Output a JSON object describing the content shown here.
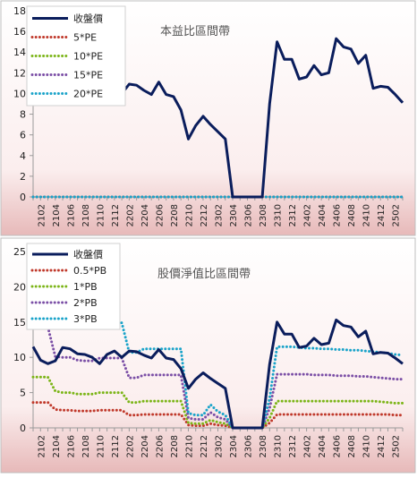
{
  "chart_data": [
    {
      "type": "line",
      "title": "本益比區間帶",
      "ylim": [
        0,
        18
      ],
      "yticks": [
        0,
        2,
        4,
        6,
        8,
        10,
        12,
        14,
        16,
        18
      ],
      "categories": [
        "2101",
        "2102",
        "2103",
        "2104",
        "2105",
        "2106",
        "2107",
        "2108",
        "2109",
        "2110",
        "2111",
        "2112",
        "2201",
        "2202",
        "2203",
        "2204",
        "2205",
        "2206",
        "2207",
        "2208",
        "2209",
        "2210",
        "2211",
        "2212",
        "2301",
        "2302",
        "2303",
        "2304",
        "2305",
        "2306",
        "2307",
        "2308",
        "2309",
        "2310",
        "2311",
        "2312",
        "2401",
        "2402",
        "2403",
        "2404",
        "2405",
        "2406",
        "2407",
        "2408",
        "2409",
        "2410",
        "2411",
        "2412",
        "2501",
        "2502",
        "2503"
      ],
      "xticklabels": [
        "2102",
        "2104",
        "2106",
        "2108",
        "2110",
        "2112",
        "2202",
        "2204",
        "2206",
        "2208",
        "2210",
        "2212",
        "2302",
        "2304",
        "2306",
        "2308",
        "2310",
        "2312",
        "2402",
        "2404",
        "2406",
        "2408",
        "2410",
        "2412",
        "2502"
      ],
      "legend": {
        "position": "top-left"
      },
      "grid": false,
      "series": [
        {
          "name": "收盤價",
          "color": "#0a1d5c",
          "style": "solid",
          "values": [
            11.5,
            9.6,
            9.1,
            9.5,
            11.4,
            11.2,
            10.5,
            10.4,
            10.0,
            9.1,
            10.4,
            10.9,
            10.0,
            10.9,
            10.8,
            10.3,
            9.9,
            11.1,
            9.9,
            9.7,
            8.4,
            5.6,
            6.9,
            7.8,
            7.0,
            6.3,
            5.6,
            0,
            0,
            0,
            0,
            0,
            9.0,
            15.0,
            13.3,
            13.3,
            11.4,
            11.6,
            12.7,
            11.8,
            12.0,
            15.3,
            14.5,
            14.3,
            12.9,
            13.7,
            10.5,
            10.7,
            10.6,
            9.9,
            9.1
          ]
        },
        {
          "name": "5*PE",
          "color": "#c0392b",
          "style": "dotted",
          "values": [
            0,
            0,
            0,
            0,
            0,
            0,
            0,
            0,
            0,
            0,
            0,
            0,
            0,
            0,
            0,
            0,
            0,
            0,
            0,
            0,
            0,
            0,
            0,
            0,
            0,
            0,
            0,
            0,
            0,
            0,
            0,
            0,
            0,
            0,
            0,
            0,
            0,
            0,
            0,
            0,
            0,
            0,
            0,
            0,
            0,
            0,
            0,
            0,
            0,
            0,
            0
          ]
        },
        {
          "name": "10*PE",
          "color": "#7cb518",
          "style": "dotted",
          "values": [
            0,
            0,
            0,
            0,
            0,
            0,
            0,
            0,
            0,
            0,
            0,
            0,
            0,
            0,
            0,
            0,
            0,
            0,
            0,
            0,
            0,
            0,
            0,
            0,
            0,
            0,
            0,
            0,
            0,
            0,
            0,
            0,
            0,
            0,
            0,
            0,
            0,
            0,
            0,
            0,
            0,
            0,
            0,
            0,
            0,
            0,
            0,
            0,
            0,
            0,
            0
          ]
        },
        {
          "name": "15*PE",
          "color": "#7b4fa6",
          "style": "dotted",
          "values": [
            0,
            0,
            0,
            0,
            0,
            0,
            0,
            0,
            0,
            0,
            0,
            0,
            0,
            0,
            0,
            0,
            0,
            0,
            0,
            0,
            0,
            0,
            0,
            0,
            0,
            0,
            0,
            0,
            0,
            0,
            0,
            0,
            0,
            0,
            0,
            0,
            0,
            0,
            0,
            0,
            0,
            0,
            0,
            0,
            0,
            0,
            0,
            0,
            0,
            0,
            0
          ]
        },
        {
          "name": "20*PE",
          "color": "#1aa3c9",
          "style": "dotted",
          "values": [
            0,
            0,
            0,
            0,
            0,
            0,
            0,
            0,
            0,
            0,
            0,
            0,
            0,
            0,
            0,
            0,
            0,
            0,
            0,
            0,
            0,
            0,
            0,
            0,
            0,
            0,
            0,
            0,
            0,
            0,
            0,
            0,
            0,
            0,
            0,
            0,
            0,
            0,
            0,
            0,
            0,
            0,
            0,
            0,
            0,
            0,
            0,
            0,
            0,
            0,
            0
          ]
        }
      ]
    },
    {
      "type": "line",
      "title": "股價淨值比區間帶",
      "ylim": [
        0,
        25
      ],
      "yticks": [
        0,
        5,
        10,
        15,
        20,
        25
      ],
      "categories": [
        "2101",
        "2102",
        "2103",
        "2104",
        "2105",
        "2106",
        "2107",
        "2108",
        "2109",
        "2110",
        "2111",
        "2112",
        "2201",
        "2202",
        "2203",
        "2204",
        "2205",
        "2206",
        "2207",
        "2208",
        "2209",
        "2210",
        "2211",
        "2212",
        "2301",
        "2302",
        "2303",
        "2304",
        "2305",
        "2306",
        "2307",
        "2308",
        "2309",
        "2310",
        "2311",
        "2312",
        "2401",
        "2402",
        "2403",
        "2404",
        "2405",
        "2406",
        "2407",
        "2408",
        "2409",
        "2410",
        "2411",
        "2412",
        "2501",
        "2502",
        "2503"
      ],
      "xticklabels": [
        "2102",
        "2104",
        "2106",
        "2108",
        "2110",
        "2112",
        "2202",
        "2204",
        "2206",
        "2208",
        "2210",
        "2212",
        "2302",
        "2304",
        "2306",
        "2308",
        "2310",
        "2312",
        "2402",
        "2404",
        "2406",
        "2408",
        "2410",
        "2412",
        "2502"
      ],
      "legend": {
        "position": "top-left"
      },
      "grid": false,
      "series": [
        {
          "name": "收盤價",
          "color": "#0a1d5c",
          "style": "solid",
          "values": [
            11.5,
            9.6,
            9.1,
            9.5,
            11.4,
            11.2,
            10.5,
            10.4,
            10.0,
            9.1,
            10.4,
            10.9,
            10.0,
            10.9,
            10.8,
            10.3,
            9.9,
            11.1,
            9.9,
            9.7,
            8.4,
            5.6,
            6.9,
            7.8,
            7.0,
            6.3,
            5.6,
            0,
            0,
            0,
            0,
            0,
            9.0,
            15.0,
            13.3,
            13.3,
            11.4,
            11.6,
            12.7,
            11.8,
            12.0,
            15.3,
            14.5,
            14.3,
            12.9,
            13.7,
            10.5,
            10.7,
            10.6,
            9.9,
            9.1
          ]
        },
        {
          "name": "0.5*PB",
          "color": "#c0392b",
          "style": "dotted",
          "values": [
            3.6,
            3.6,
            3.6,
            2.6,
            2.5,
            2.5,
            2.4,
            2.4,
            2.4,
            2.5,
            2.5,
            2.5,
            2.5,
            1.8,
            1.8,
            1.9,
            1.9,
            1.9,
            1.9,
            1.9,
            1.9,
            0.4,
            0.3,
            0.3,
            0.6,
            0.4,
            0.3,
            0,
            0,
            0,
            0,
            0,
            0.7,
            1.9,
            1.9,
            1.9,
            1.9,
            1.9,
            1.9,
            1.9,
            1.9,
            1.9,
            1.9,
            1.9,
            1.9,
            1.9,
            1.9,
            1.9,
            1.9,
            1.8,
            1.8
          ]
        },
        {
          "name": "1*PB",
          "color": "#7cb518",
          "style": "dotted",
          "values": [
            7.2,
            7.2,
            7.2,
            5.2,
            5.0,
            5.0,
            4.8,
            4.8,
            4.8,
            5.0,
            5.0,
            5.0,
            5.0,
            3.6,
            3.6,
            3.8,
            3.8,
            3.8,
            3.8,
            3.8,
            3.8,
            0.7,
            0.6,
            0.6,
            1.1,
            0.8,
            0.6,
            0,
            0,
            0,
            0,
            0,
            1.4,
            3.8,
            3.8,
            3.8,
            3.8,
            3.8,
            3.8,
            3.8,
            3.8,
            3.8,
            3.8,
            3.8,
            3.8,
            3.8,
            3.8,
            3.7,
            3.6,
            3.5,
            3.5
          ]
        },
        {
          "name": "2*PB",
          "color": "#7b4fa6",
          "style": "dotted",
          "values": [
            14.3,
            14.3,
            14.3,
            10.1,
            10.0,
            10.0,
            9.6,
            9.5,
            9.5,
            9.9,
            9.9,
            9.9,
            9.9,
            7.1,
            7.1,
            7.5,
            7.5,
            7.5,
            7.5,
            7.5,
            7.5,
            1.4,
            1.2,
            1.2,
            2.2,
            1.5,
            1.2,
            0,
            0,
            0,
            0,
            0,
            2.8,
            7.6,
            7.6,
            7.6,
            7.6,
            7.6,
            7.5,
            7.5,
            7.5,
            7.4,
            7.4,
            7.4,
            7.3,
            7.3,
            7.2,
            7.1,
            7.0,
            6.9,
            6.9
          ]
        },
        {
          "name": "3*PB",
          "color": "#1aa3c9",
          "style": "dotted",
          "values": [
            21.4,
            21.4,
            21.4,
            15.2,
            15.0,
            15.0,
            14.4,
            14.3,
            14.3,
            14.9,
            14.9,
            14.9,
            14.9,
            10.7,
            10.7,
            11.2,
            11.2,
            11.2,
            11.2,
            11.2,
            11.2,
            2.1,
            1.8,
            1.8,
            3.3,
            2.3,
            1.8,
            0,
            0,
            0,
            0,
            0,
            4.2,
            11.5,
            11.5,
            11.5,
            11.4,
            11.3,
            11.3,
            11.2,
            11.2,
            11.1,
            11.1,
            11.0,
            11.0,
            10.9,
            10.8,
            10.7,
            10.6,
            10.4,
            10.3
          ]
        }
      ]
    }
  ]
}
